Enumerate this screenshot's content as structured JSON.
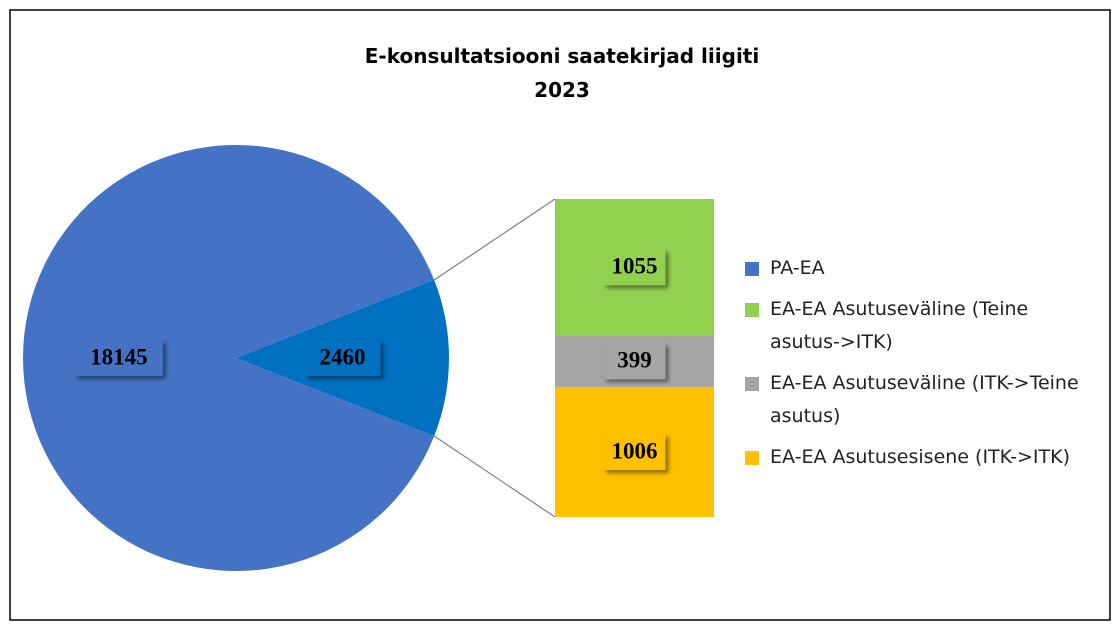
{
  "chart_data": {
    "type": "pie",
    "title": "E-konsultatsiooni saatekirjad liigiti",
    "subtitle": "2023",
    "categories": [
      "PA-EA",
      null
    ],
    "values": [
      18145,
      2460
    ],
    "colors": [
      "#4472C4",
      "#0070C0"
    ],
    "breakdown": {
      "categories": [
        "EA-EA Asutuseväline (Teine asutus->ITK)",
        "EA-EA Asutuseväline  (ITK->Teine asutus)",
        "EA-EA Asutusesisene (ITK->ITK)"
      ],
      "values": [
        1055,
        399,
        1006
      ],
      "colors": [
        "#92D050",
        "#A5A5A5",
        "#FFC000"
      ]
    }
  }
}
